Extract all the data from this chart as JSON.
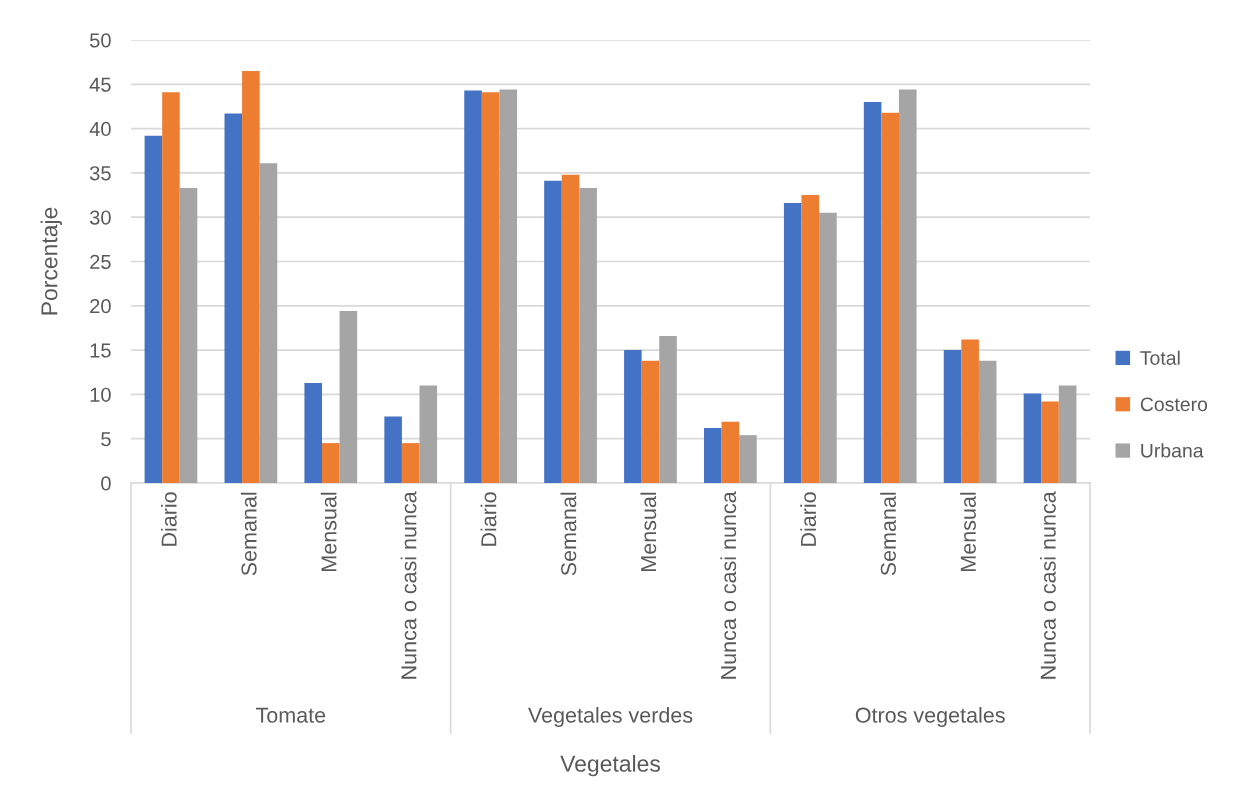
{
  "chart_data": {
    "type": "bar",
    "xlabel": "Vegetales",
    "ylabel": "Porcentaje",
    "categories": [
      "Diario",
      "Semanal",
      "Mensual",
      "Nunca o casi nunca",
      "Diario",
      "Semanal",
      "Mensual",
      "Nunca o casi nunca",
      "Diario",
      "Semanal",
      "Mensual",
      "Nunca o casi nunca"
    ],
    "annotations": [
      "Tomate",
      "Vegetales verdes",
      "Otros vegetales"
    ],
    "series": [
      {
        "name": "Total",
        "color": "#4472c4",
        "values": [
          39.2,
          41.7,
          11.3,
          7.5,
          44.3,
          34.1,
          15.0,
          6.2,
          31.6,
          43.0,
          15.0,
          10.1
        ]
      },
      {
        "name": "Costero",
        "color": "#ed7d31",
        "values": [
          44.1,
          46.5,
          4.5,
          4.5,
          44.1,
          34.8,
          13.8,
          6.9,
          32.5,
          41.8,
          16.2,
          9.2
        ]
      },
      {
        "name": "Urbana",
        "color": "#a5a5a5",
        "values": [
          33.3,
          36.1,
          19.4,
          11.0,
          44.4,
          33.3,
          16.6,
          5.4,
          30.5,
          44.4,
          13.8,
          11.0
        ]
      }
    ],
    "ylim": [
      0,
      50
    ],
    "yticks": [
      0,
      5,
      10,
      15,
      20,
      25,
      30,
      35,
      40,
      45,
      50
    ],
    "grid": "y",
    "legend": "right"
  }
}
